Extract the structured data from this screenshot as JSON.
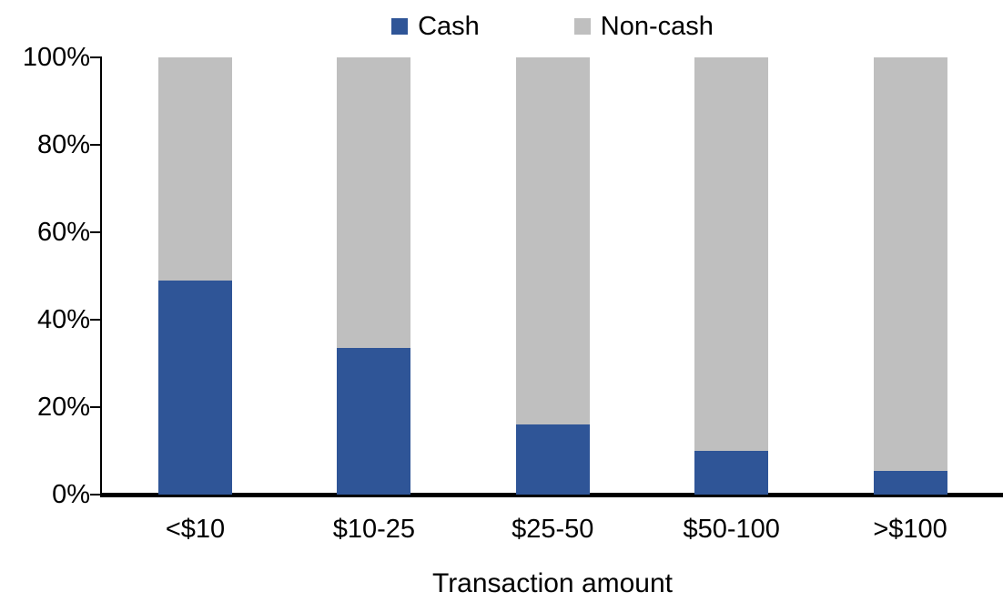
{
  "chart_data": {
    "type": "bar",
    "stacked": true,
    "orientation": "vertical",
    "title": "",
    "xlabel": "Transaction amount",
    "ylabel": "",
    "categories": [
      "<$10",
      "$10-25",
      "$25-50",
      "$50-100",
      ">$100"
    ],
    "series": [
      {
        "name": "Cash",
        "color": "#2F5597",
        "values": [
          49,
          33.5,
          16,
          10,
          5.5
        ]
      },
      {
        "name": "Non-cash",
        "color": "#BFBFBF",
        "values": [
          51,
          66.5,
          84,
          90,
          94.5
        ]
      }
    ],
    "ylim": [
      0,
      100
    ],
    "y_ticks": [
      "0%",
      "20%",
      "40%",
      "60%",
      "80%",
      "100%"
    ],
    "grid": false,
    "legend_position": "top",
    "axis_color": "#000000",
    "background_color": "#FFFFFF"
  }
}
